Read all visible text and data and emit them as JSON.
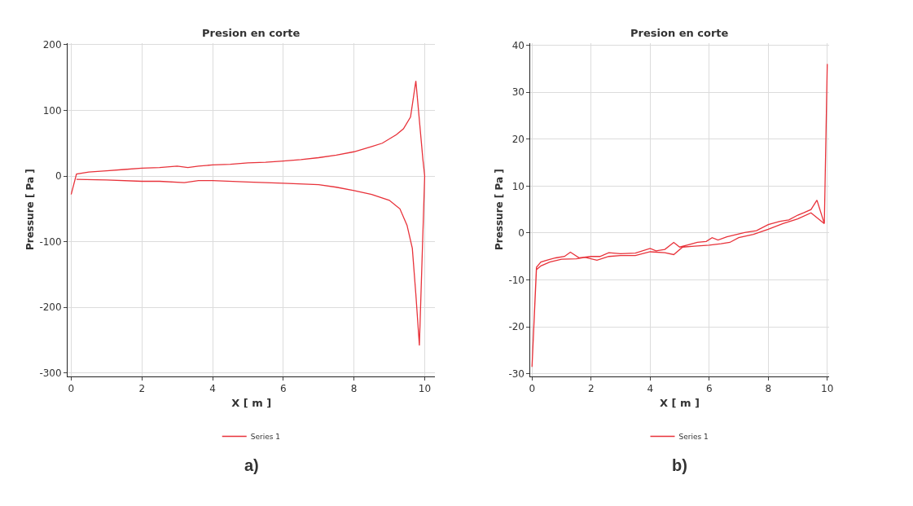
{
  "chart_data": [
    {
      "type": "line",
      "title": "Presion en corte",
      "xlabel": "X [ m ]",
      "ylabel": "Pressure [ Pa ]",
      "xlim": [
        -0.1,
        10.3
      ],
      "xticks": [
        0,
        2,
        4,
        6,
        8,
        10
      ],
      "ylim": [
        -305,
        203
      ],
      "yticks": [
        -300,
        -200,
        -100,
        0,
        100,
        200
      ],
      "grid": true,
      "legend": "bottom",
      "marker": "none",
      "line_style": "solid",
      "annotations": [
        "a)"
      ],
      "series": [
        {
          "name": "Series 1",
          "color": "#e8323a",
          "x": [
            0,
            0.15,
            0.5,
            1,
            1.5,
            2,
            2.5,
            3,
            3.3,
            3.6,
            4,
            4.5,
            5,
            5.5,
            6,
            6.5,
            7,
            7.5,
            8,
            8.5,
            8.8,
            9.2,
            9.4,
            9.6,
            9.75,
            9.95,
            10,
            9.85,
            9.75,
            9.65,
            9.5,
            9.3,
            9,
            8.5,
            8,
            7.5,
            7,
            6,
            5,
            4,
            3.6,
            3.2,
            2.5,
            2,
            1,
            0.15
          ],
          "values": [
            -28,
            3,
            6,
            8,
            10,
            12,
            13,
            15,
            13,
            15,
            17,
            18,
            20,
            21,
            23,
            25,
            28,
            32,
            37,
            45,
            50,
            63,
            72,
            90,
            145,
            25,
            0,
            -258,
            -180,
            -110,
            -75,
            -50,
            -37,
            -28,
            -22,
            -17,
            -13,
            -11,
            -9,
            -7,
            -7,
            -10,
            -8,
            -8,
            -6,
            -5
          ]
        }
      ]
    },
    {
      "type": "line",
      "title": "Presion en corte",
      "xlabel": "X [ m ]",
      "ylabel": "Pressure [ Pa ]",
      "xlim": [
        -0.05,
        10.05
      ],
      "xticks": [
        0,
        2,
        4,
        6,
        8,
        10
      ],
      "ylim": [
        -30.5,
        40.5
      ],
      "yticks": [
        -30,
        -20,
        -10,
        0,
        10,
        20,
        30,
        40
      ],
      "grid": true,
      "legend": "bottom",
      "marker": "none",
      "line_style": "solid",
      "annotations": [
        "b)"
      ],
      "series": [
        {
          "name": "Series 1",
          "color": "#e8323a",
          "x": [
            10,
            9.9,
            9.65,
            9.45,
            9.2,
            9,
            8.7,
            8.4,
            8,
            7.6,
            7.2,
            6.8,
            6.6,
            6.3,
            6.1,
            5.9,
            5.6,
            5.3,
            5,
            4.8,
            4.5,
            4.2,
            4,
            3.5,
            3,
            2.6,
            2.3,
            2,
            1.6,
            1.3,
            1.1,
            0.8,
            0.5,
            0.3,
            0.15,
            0,
            0.15,
            0.3,
            0.6,
            1,
            1.5,
            1.8,
            2.2,
            2.6,
            3,
            3.5,
            4,
            4.5,
            4.8,
            5.1,
            5.5,
            6,
            6.4,
            6.7,
            7,
            7.5,
            8,
            8.5,
            9,
            9.45,
            9.9
          ],
          "values": [
            36,
            2,
            7,
            5,
            4.3,
            3.8,
            2.8,
            2.5,
            1.8,
            0.5,
            0.1,
            -0.5,
            -0.8,
            -1.5,
            -1,
            -1.8,
            -2,
            -2.5,
            -3,
            -2,
            -3.5,
            -3.8,
            -3.3,
            -4.3,
            -4.4,
            -4.2,
            -5,
            -5,
            -5.3,
            -4.1,
            -5,
            -5.3,
            -5.8,
            -6.2,
            -7.3,
            -28.5,
            -7.8,
            -7,
            -6.2,
            -5.6,
            -5.5,
            -5.2,
            -5.8,
            -5,
            -4.8,
            -4.8,
            -4,
            -4.2,
            -4.6,
            -3,
            -2.8,
            -2.6,
            -2.3,
            -2,
            -1,
            -0.3,
            0.8,
            2,
            3,
            4.3,
            2
          ]
        }
      ]
    }
  ]
}
